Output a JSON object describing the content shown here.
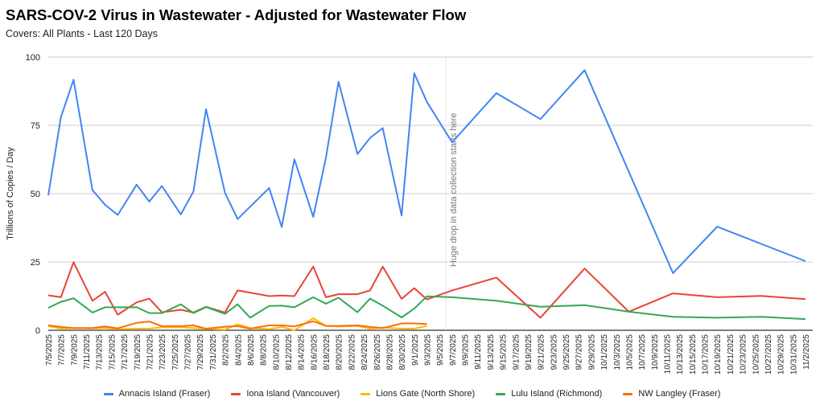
{
  "chart_data": {
    "type": "line",
    "title": "SARS-COV-2 Virus in Wastewater - Adjusted for Wastewater Flow",
    "subtitle": "Covers: All Plants - Last 120 Days",
    "xlabel": "",
    "ylabel": "Trillions of Copies / Day",
    "ylim": [
      0,
      100
    ],
    "y_ticks": [
      "0",
      "25",
      "50",
      "75",
      "100"
    ],
    "x_range": [
      "7/5/2025",
      "11/2/2025"
    ],
    "grid": true,
    "legend_position": "bottom",
    "x_ticks": [
      "7/5/2025",
      "7/7/2025",
      "7/9/2025",
      "7/11/2025",
      "7/13/2025",
      "7/15/2025",
      "7/17/2025",
      "7/19/2025",
      "7/21/2025",
      "7/23/2025",
      "7/25/2025",
      "7/27/2025",
      "7/29/2025",
      "7/31/2025",
      "8/2/2025",
      "8/4/2025",
      "8/6/2025",
      "8/8/2025",
      "8/10/2025",
      "8/12/2025",
      "8/14/2025",
      "8/16/2025",
      "8/18/2025",
      "8/20/2025",
      "8/22/2025",
      "8/24/2025",
      "8/26/2025",
      "8/28/2025",
      "8/30/2025",
      "9/1/2025",
      "9/3/2025",
      "9/5/2025",
      "9/7/2025",
      "9/9/2025",
      "9/11/2025",
      "9/13/2025",
      "9/15/2025",
      "9/17/2025",
      "9/19/2025",
      "9/21/2025",
      "9/23/2025",
      "9/25/2025",
      "9/27/2025",
      "9/29/2025",
      "10/1/2025",
      "10/3/2025",
      "10/5/2025",
      "10/7/2025",
      "10/9/2025",
      "10/11/2025",
      "10/13/2025",
      "10/15/2025",
      "10/17/2025",
      "10/19/2025",
      "10/21/2025",
      "10/23/2025",
      "10/25/2025",
      "10/27/2025",
      "10/29/2025",
      "10/31/2025",
      "11/2/2025"
    ],
    "x": [
      "7/5/2025",
      "7/7/2025",
      "7/9/2025",
      "7/12/2025",
      "7/14/2025",
      "7/16/2025",
      "7/19/2025",
      "7/21/2025",
      "7/23/2025",
      "7/26/2025",
      "7/28/2025",
      "7/30/2025",
      "8/2/2025",
      "8/4/2025",
      "8/6/2025",
      "8/9/2025",
      "8/11/2025",
      "8/13/2025",
      "8/16/2025",
      "8/18/2025",
      "8/20/2025",
      "8/23/2025",
      "8/25/2025",
      "8/27/2025",
      "8/30/2025",
      "9/1/2025",
      "9/3/2025",
      "9/7/2025",
      "9/14/2025",
      "9/21/2025",
      "9/28/2025",
      "10/5/2025",
      "10/12/2025",
      "10/19/2025",
      "10/26/2025",
      "11/2/2025"
    ],
    "series": [
      {
        "name": "Annacis Island (Fraser)",
        "color": "#4285f4",
        "values": [
          49.4,
          78,
          91.7,
          51.3,
          45.9,
          42.2,
          53.3,
          47.1,
          52.8,
          42.4,
          50.8,
          80.9,
          50.3,
          40.7,
          null,
          52.1,
          37.8,
          62.6,
          41.5,
          63.1,
          91,
          64.5,
          70.4,
          74,
          42,
          94.1,
          83.6,
          68.8,
          86.8,
          77.3,
          95.2,
          null,
          20.9,
          37.9,
          null,
          25.3
        ]
      },
      {
        "name": "Iona Island (Vancouver)",
        "color": "#ea4335",
        "values": [
          12.8,
          12.1,
          24.9,
          10.8,
          14.1,
          5.7,
          10.2,
          11.6,
          6.6,
          7.5,
          6.5,
          8.6,
          6.5,
          14.6,
          null,
          12.5,
          12.7,
          12.5,
          23.3,
          12.1,
          13.2,
          13.2,
          14.6,
          23.3,
          11.5,
          15.4,
          11.3,
          14.6,
          19.3,
          4.6,
          22.6,
          6.8,
          13.5,
          12.1,
          12.6,
          11.4
        ]
      },
      {
        "name": "Lions Gate (North Shore)",
        "color": "#fbbc04",
        "values": [
          1.6,
          0.6,
          0.8,
          0.7,
          0.8,
          0.4,
          0.6,
          0.6,
          1.1,
          1.1,
          0.8,
          0.5,
          0.2,
          2.2,
          0.8,
          0.4,
          1.2,
          0,
          4.4,
          1.6,
          1.4,
          1.6,
          0.6,
          1.0,
          0.6,
          0.6,
          1.6,
          null,
          null,
          null,
          null,
          null,
          null,
          null,
          null,
          null
        ]
      },
      {
        "name": "Lulu Island (Richmond)",
        "color": "#34a853",
        "values": [
          8.2,
          10.4,
          11.7,
          6.5,
          8.4,
          8.4,
          8.4,
          6.3,
          6.3,
          9.5,
          6.3,
          8.5,
          6,
          9.5,
          4.6,
          8.9,
          9,
          8.4,
          12.1,
          9.7,
          11.9,
          6.6,
          11.6,
          9,
          4.7,
          7.9,
          12.4,
          12.1,
          10.8,
          8.6,
          9.2,
          6.8,
          4.9,
          4.6,
          4.9,
          4.1
        ]
      },
      {
        "name": "NW Langley (Fraser)",
        "color": "#ff6d01",
        "values": [
          1.8,
          1.2,
          0.8,
          0.8,
          1.4,
          0.7,
          2.7,
          3.2,
          1.5,
          1.5,
          1.8,
          0.6,
          1.3,
          1.5,
          0.6,
          1.8,
          1.8,
          1.4,
          3.3,
          1.6,
          1.6,
          1.8,
          1.2,
          0.8,
          2.5,
          2.5,
          2.3,
          null,
          null,
          null,
          null,
          null,
          null,
          null,
          null,
          null
        ]
      }
    ],
    "annotations": [
      {
        "x": "9/6/2025",
        "text": "Huge drop in data collection starts here"
      }
    ]
  }
}
